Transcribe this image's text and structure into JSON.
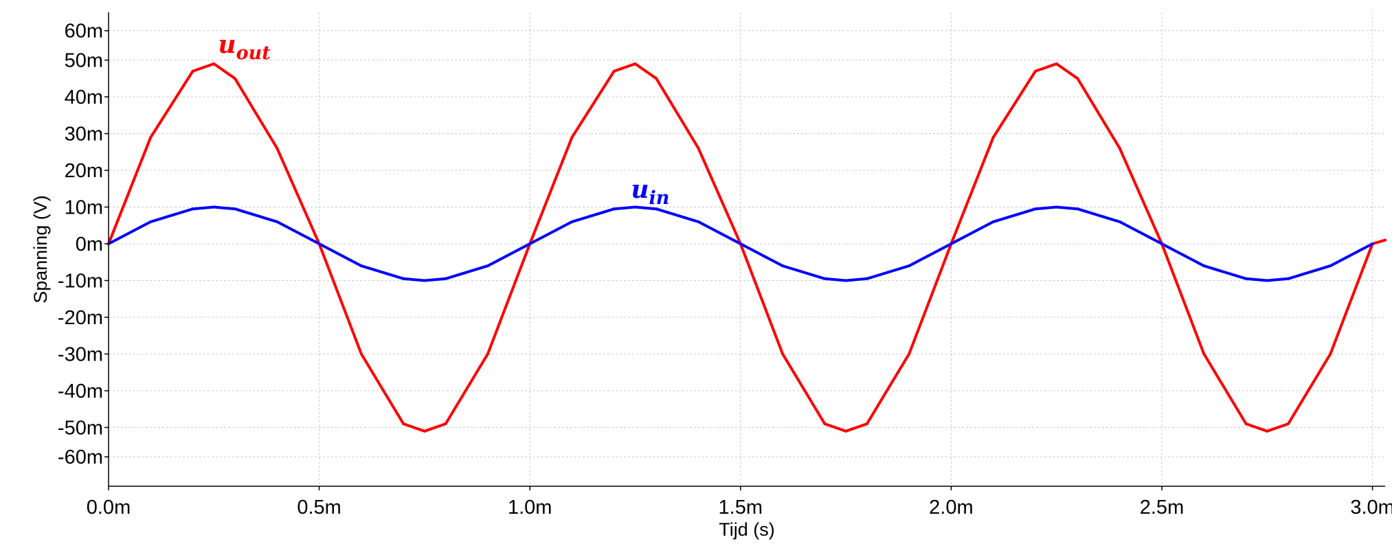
{
  "chart_data": {
    "type": "line",
    "xlabel": "Tijd (s)",
    "ylabel": "Spanning (V)",
    "xlim": [
      0,
      0.00303
    ],
    "ylim": [
      -0.066,
      0.063
    ],
    "x_ticks": [
      {
        "value": 0.0,
        "label": "0.0m"
      },
      {
        "value": 0.0005,
        "label": "0.5m"
      },
      {
        "value": 0.001,
        "label": "1.0m"
      },
      {
        "value": 0.0015,
        "label": "1.5m"
      },
      {
        "value": 0.002,
        "label": "2.0m"
      },
      {
        "value": 0.0025,
        "label": "2.5m"
      },
      {
        "value": 0.003,
        "label": "3.0m"
      }
    ],
    "y_ticks": [
      {
        "value": 0.058,
        "label": "60m"
      },
      {
        "value": 0.05,
        "label": "50m"
      },
      {
        "value": 0.04,
        "label": "40m"
      },
      {
        "value": 0.03,
        "label": "30m"
      },
      {
        "value": 0.02,
        "label": "20m"
      },
      {
        "value": 0.01,
        "label": "10m"
      },
      {
        "value": 0.0,
        "label": "0m"
      },
      {
        "value": -0.01,
        "label": "-10m"
      },
      {
        "value": -0.02,
        "label": "-20m"
      },
      {
        "value": -0.03,
        "label": "-30m"
      },
      {
        "value": -0.04,
        "label": "-40m"
      },
      {
        "value": -0.05,
        "label": "-50m"
      },
      {
        "value": -0.058,
        "label": "-60m"
      }
    ],
    "grid": true,
    "series": [
      {
        "name": "out",
        "label_base": "u",
        "label_sub": "out",
        "color": "#ff0000",
        "x": [
          0,
          0.0001,
          0.0002,
          0.00025,
          0.0003,
          0.0004,
          0.0005,
          0.0006,
          0.0007,
          0.00075,
          0.0008,
          0.0009,
          0.001,
          0.0011,
          0.0012,
          0.00125,
          0.0013,
          0.0014,
          0.0015,
          0.0016,
          0.0017,
          0.00175,
          0.0018,
          0.0019,
          0.002,
          0.0021,
          0.0022,
          0.00225,
          0.0023,
          0.0024,
          0.0025,
          0.0026,
          0.0027,
          0.00275,
          0.0028,
          0.0029,
          0.003,
          0.00303
        ],
        "y": [
          0,
          0.029,
          0.047,
          0.049,
          0.045,
          0.026,
          0,
          -0.03,
          -0.049,
          -0.051,
          -0.049,
          -0.03,
          0,
          0.029,
          0.047,
          0.049,
          0.045,
          0.026,
          0,
          -0.03,
          -0.049,
          -0.051,
          -0.049,
          -0.03,
          0,
          0.029,
          0.047,
          0.049,
          0.045,
          0.026,
          0,
          -0.03,
          -0.049,
          -0.051,
          -0.049,
          -0.03,
          0,
          0.001
        ]
      },
      {
        "name": "in",
        "label_base": "u",
        "label_sub": "in",
        "color": "#0000ff",
        "x": [
          0,
          0.0001,
          0.0002,
          0.00025,
          0.0003,
          0.0004,
          0.0005,
          0.0006,
          0.0007,
          0.00075,
          0.0008,
          0.0009,
          0.001,
          0.0011,
          0.0012,
          0.00125,
          0.0013,
          0.0014,
          0.0015,
          0.0016,
          0.0017,
          0.00175,
          0.0018,
          0.0019,
          0.002,
          0.0021,
          0.0022,
          0.00225,
          0.0023,
          0.0024,
          0.0025,
          0.0026,
          0.0027,
          0.00275,
          0.0028,
          0.0029,
          0.003
        ],
        "y": [
          0,
          0.006,
          0.0095,
          0.01,
          0.0095,
          0.006,
          0,
          -0.006,
          -0.0095,
          -0.01,
          -0.0095,
          -0.006,
          0,
          0.006,
          0.0095,
          0.01,
          0.0095,
          0.006,
          0,
          -0.006,
          -0.0095,
          -0.01,
          -0.0095,
          -0.006,
          0,
          0.006,
          0.0095,
          0.01,
          0.0095,
          0.006,
          0,
          -0.006,
          -0.0095,
          -0.01,
          -0.0095,
          -0.006,
          0
        ]
      }
    ],
    "annotations": [
      {
        "series": "out",
        "x": 0.00026,
        "y": 0.052
      },
      {
        "series": "in",
        "x": 0.00124,
        "y": 0.0125
      }
    ]
  }
}
